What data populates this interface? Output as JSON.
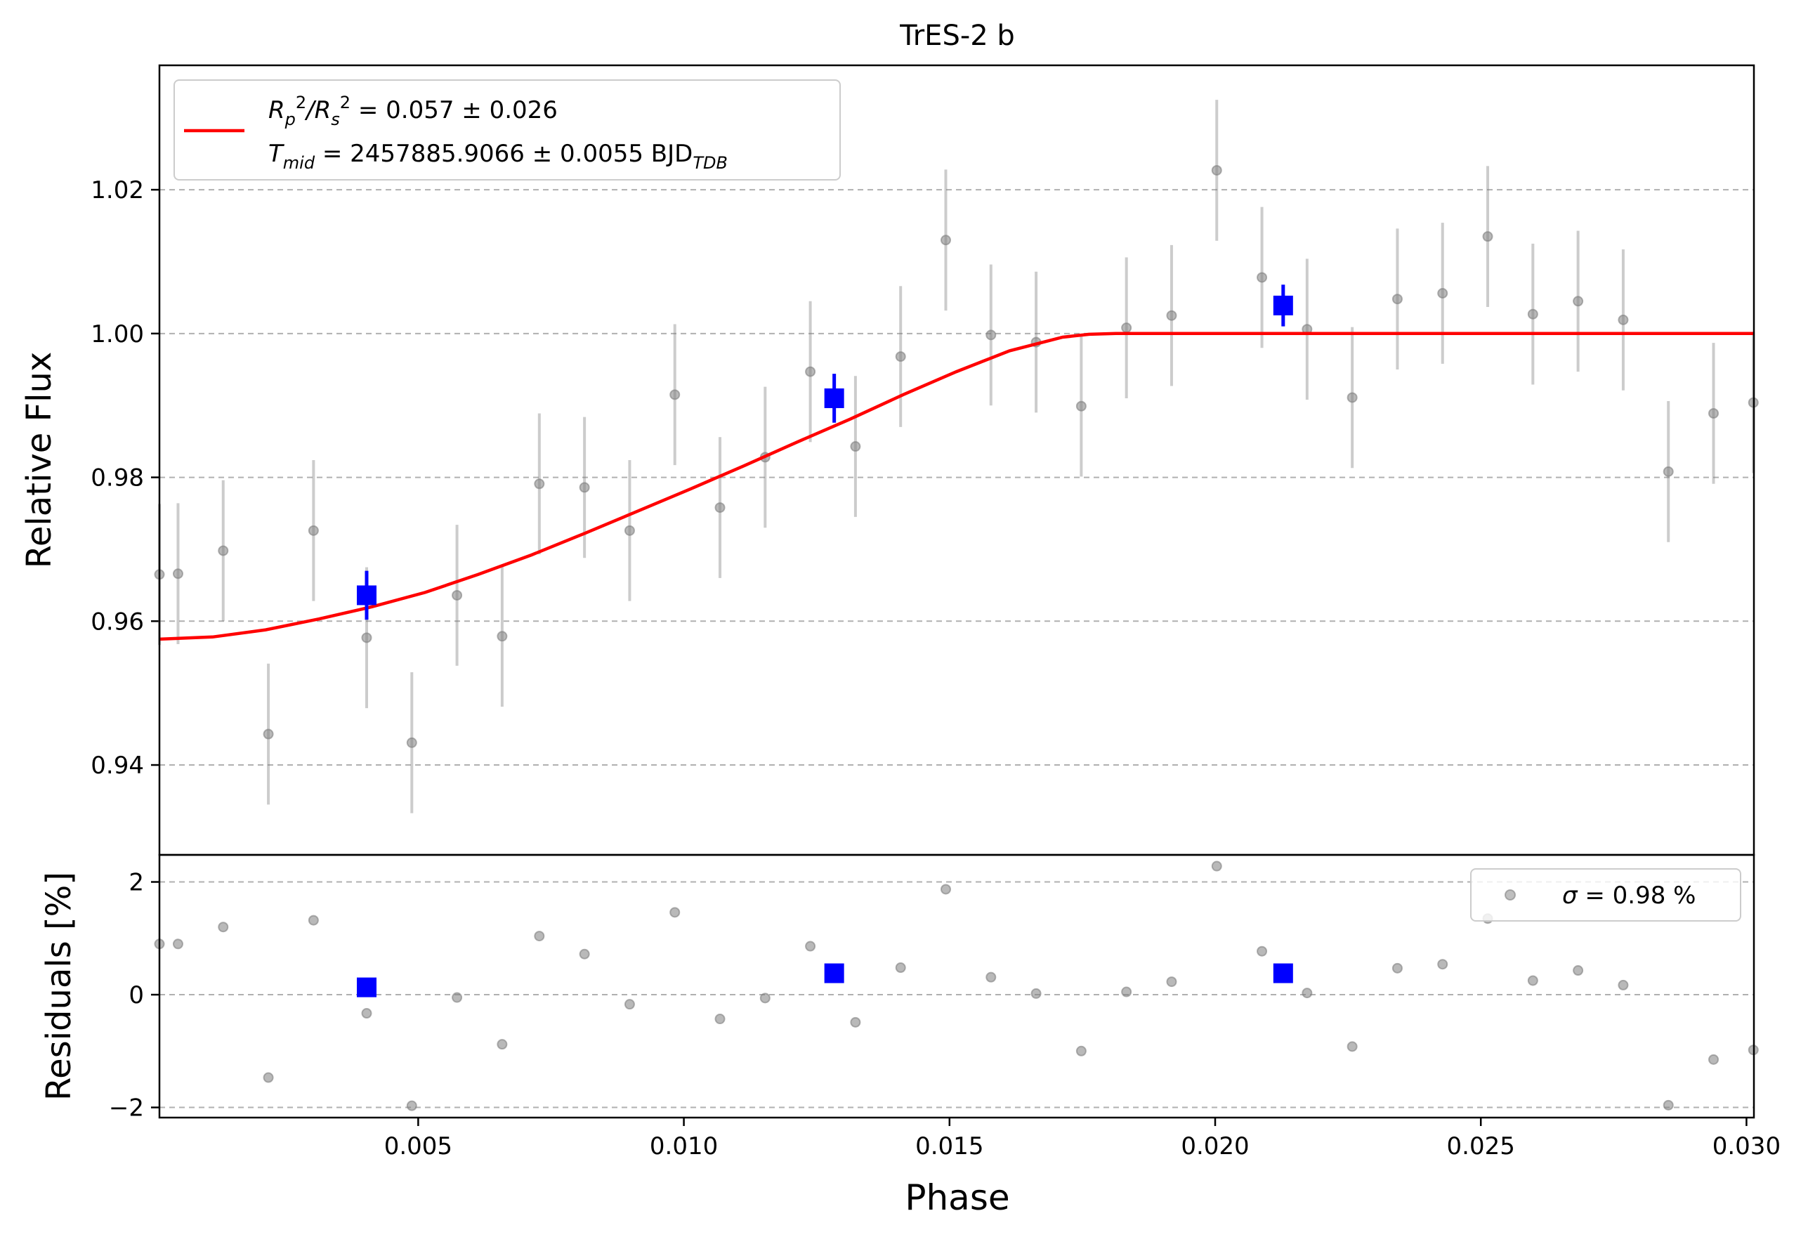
{
  "chart_data": [
    {
      "type": "scatter",
      "title": "TrES-2 b",
      "xlabel": "",
      "ylabel": "Relative Flux",
      "xlim": [
        0.00013,
        0.03014
      ],
      "ylim": [
        0.9275,
        1.0373
      ],
      "yticks": [
        0.94,
        0.96,
        0.98,
        1.0,
        1.02
      ],
      "ytick_labels": [
        "0.94",
        "0.96",
        "0.98",
        "1.00",
        "1.02"
      ],
      "grid": "horizontal dashed",
      "legend": {
        "position": "top-left",
        "line1_parts": [
          "R",
          "p",
          "2",
          "/R",
          "s",
          "2",
          " = 0.057 ± 0.026"
        ],
        "line2_parts": [
          "T",
          "mid",
          " = 2457885.9066 ± 0.0055 BJD",
          "TDB"
        ],
        "line_color": "#ff0000"
      },
      "series": [
        {
          "role": "data",
          "marker": "circle",
          "color": "#808080",
          "x": [
            0.00013,
            0.00048,
            0.00133,
            0.00218,
            0.00303,
            0.00403,
            0.00488,
            0.00573,
            0.00658,
            0.00728,
            0.00813,
            0.00898,
            0.00983,
            0.01068,
            0.01153,
            0.01238,
            0.01323,
            0.01408,
            0.01493,
            0.01578,
            0.01663,
            0.01748,
            0.01833,
            0.01918,
            0.02003,
            0.02088,
            0.02173,
            0.02258,
            0.02343,
            0.02428,
            0.02513,
            0.02598,
            0.02683,
            0.02768,
            0.02853,
            0.02938,
            0.03013
          ],
          "y": [
            0.9665,
            0.9666,
            0.9698,
            0.9443,
            0.9726,
            0.9577,
            0.9431,
            0.9636,
            0.9579,
            0.9791,
            0.9786,
            0.9726,
            0.9915,
            0.9758,
            0.9828,
            0.9947,
            0.9843,
            0.9968,
            1.013,
            0.9998,
            0.9988,
            0.9899,
            1.0008,
            1.0025,
            1.0227,
            1.0078,
            1.0006,
            0.9911,
            1.0048,
            1.0056,
            1.0135,
            1.0027,
            1.0045,
            1.0019,
            0.9808,
            0.9889,
            0.9904
          ],
          "yerr": 0.0098
        },
        {
          "role": "binned",
          "marker": "square",
          "color": "#0000ff",
          "x": [
            0.00403,
            0.01283,
            0.02128
          ],
          "y": [
            0.9636,
            0.991,
            1.0039
          ],
          "yerr": [
            0.0034,
            0.0034,
            0.0029
          ]
        },
        {
          "role": "model",
          "type": "line",
          "color": "#ff0000",
          "x": [
            0.00013,
            0.00113,
            0.00213,
            0.00313,
            0.00413,
            0.00513,
            0.00613,
            0.00713,
            0.00813,
            0.00913,
            0.01013,
            0.01113,
            0.01213,
            0.01313,
            0.01413,
            0.01513,
            0.01613,
            0.01713,
            0.01763,
            0.01813,
            0.01913,
            0.02013,
            0.02113,
            0.02213,
            0.02313,
            0.02413,
            0.02513,
            0.02613,
            0.02713,
            0.02813,
            0.02913,
            0.03014
          ],
          "y": [
            0.9575,
            0.9578,
            0.9588,
            0.9603,
            0.962,
            0.964,
            0.9665,
            0.9692,
            0.9722,
            0.9753,
            0.9784,
            0.9816,
            0.9849,
            0.9881,
            0.9915,
            0.9947,
            0.9976,
            0.9995,
            0.9999,
            1.0,
            1.0,
            1.0,
            1.0,
            1.0,
            1.0,
            1.0,
            1.0,
            1.0,
            1.0,
            1.0,
            1.0,
            1.0
          ]
        }
      ]
    },
    {
      "type": "scatter",
      "title": "",
      "xlabel": "Phase",
      "ylabel": "Residuals [%]",
      "xlim": [
        0.00013,
        0.03014
      ],
      "ylim": [
        -2.18,
        2.48
      ],
      "xticks": [
        0.005,
        0.01,
        0.015,
        0.02,
        0.025,
        0.03
      ],
      "xtick_labels": [
        "0.005",
        "0.010",
        "0.015",
        "0.020",
        "0.025",
        "0.030"
      ],
      "yticks": [
        -2,
        0,
        2
      ],
      "ytick_labels": [
        "−2",
        "0",
        "2"
      ],
      "grid": "horizontal dashed",
      "legend": {
        "position": "top-right",
        "parts": [
          "σ",
          " = 0.98 %"
        ]
      },
      "series": [
        {
          "role": "residuals",
          "marker": "circle",
          "color": "#808080",
          "x": [
            0.00013,
            0.00048,
            0.00133,
            0.00218,
            0.00303,
            0.00403,
            0.00488,
            0.00573,
            0.00658,
            0.00728,
            0.00813,
            0.00898,
            0.00983,
            0.01068,
            0.01153,
            0.01238,
            0.01323,
            0.01408,
            0.01493,
            0.01578,
            0.01663,
            0.01748,
            0.01833,
            0.01918,
            0.02003,
            0.02088,
            0.02173,
            0.02258,
            0.02343,
            0.02428,
            0.02513,
            0.02598,
            0.02683,
            0.02768,
            0.02853,
            0.02938,
            0.03013
          ],
          "y": [
            0.9,
            0.9,
            1.2,
            -1.47,
            1.32,
            -0.33,
            -1.97,
            -0.05,
            -0.88,
            1.04,
            0.72,
            -0.17,
            1.46,
            -0.43,
            -0.06,
            0.86,
            -0.49,
            0.48,
            1.87,
            0.31,
            0.02,
            -1.0,
            0.05,
            0.23,
            2.28,
            0.77,
            0.03,
            -0.92,
            0.47,
            0.54,
            1.35,
            0.25,
            0.43,
            0.17,
            -1.96,
            -1.15,
            -0.98
          ]
        },
        {
          "role": "binned-residuals",
          "marker": "square",
          "color": "#0000ff",
          "x": [
            0.00403,
            0.01283,
            0.02128
          ],
          "y": [
            0.13,
            0.38,
            0.38
          ]
        }
      ]
    }
  ]
}
